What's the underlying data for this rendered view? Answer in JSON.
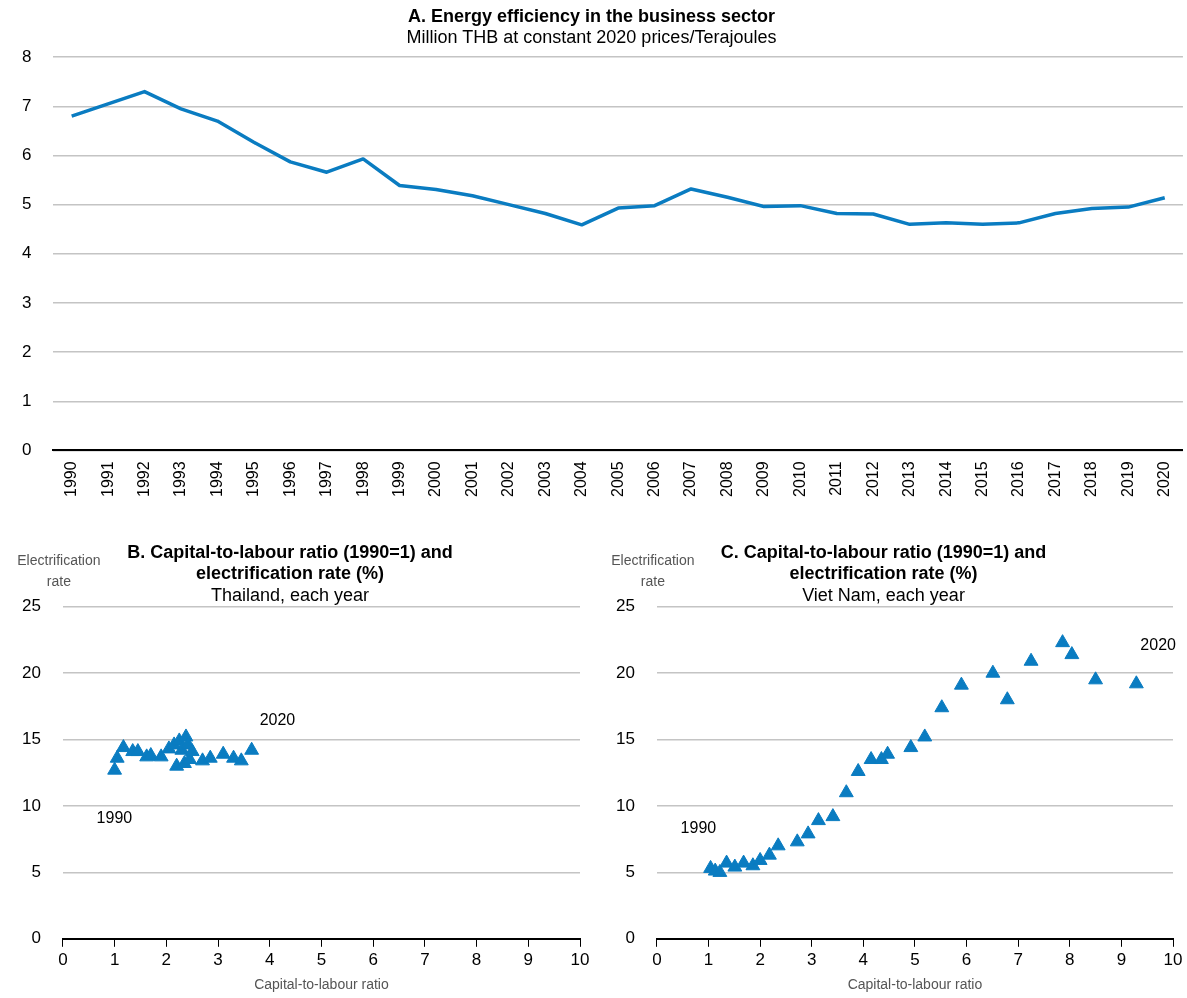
{
  "chart_data": [
    {
      "type": "line",
      "title": "A. Energy efficiency in the business sector",
      "subtitle": "Million THB at constant 2020 prices/Terajoules",
      "categories": [
        "1990",
        "1991",
        "1992",
        "1993",
        "1994",
        "1995",
        "1996",
        "1997",
        "1998",
        "1999",
        "2000",
        "2001",
        "2002",
        "2003",
        "2004",
        "2005",
        "2006",
        "2007",
        "2008",
        "2009",
        "2010",
        "2011",
        "2012",
        "2013",
        "2014",
        "2015",
        "2016",
        "2017",
        "2018",
        "2019",
        "2020"
      ],
      "series": [
        {
          "color": "#0a7cc1",
          "values": [
            6.8,
            7.05,
            7.3,
            6.95,
            6.7,
            6.27,
            5.87,
            5.66,
            5.93,
            5.39,
            5.31,
            5.18,
            5.0,
            4.82,
            4.59,
            4.93,
            4.98,
            5.32,
            5.15,
            4.96,
            4.98,
            4.82,
            4.81,
            4.6,
            4.63,
            4.6,
            4.63,
            4.82,
            4.92,
            4.95,
            5.14
          ]
        }
      ],
      "ylim": [
        0,
        8
      ],
      "yticks": [
        0,
        1,
        2,
        3,
        4,
        5,
        6,
        7,
        8
      ],
      "grid": "y",
      "marker": "none"
    },
    {
      "type": "scatter",
      "title": "B. Capital-to-labour ratio (1990=1) and electrification rate (%)",
      "subtitle": "Thailand, each year",
      "xlabel": "Capital-to-labour ratio",
      "ylabel": "Electrification rate",
      "series": [
        {
          "color": "#0a7cc1",
          "x": [
            1.0,
            1.05,
            1.17,
            1.35,
            1.45,
            1.62,
            1.7,
            1.9,
            2.05,
            2.15,
            2.2,
            2.25,
            2.3,
            2.35,
            2.38,
            2.42,
            2.45,
            2.5,
            2.7,
            2.85,
            3.1,
            3.3,
            3.45,
            3.65
          ],
          "values": [
            12.7,
            13.6,
            14.4,
            14.1,
            14.1,
            13.7,
            13.8,
            13.7,
            14.3,
            14.6,
            13.0,
            14.9,
            14.2,
            13.2,
            15.2,
            14.6,
            13.5,
            14.1,
            13.4,
            13.6,
            13.9,
            13.6,
            13.4,
            14.2
          ]
        }
      ],
      "xlim": [
        0,
        10
      ],
      "xticks": [
        0,
        1,
        2,
        3,
        4,
        5,
        6,
        7,
        8,
        9,
        10
      ],
      "ylim": [
        0,
        25
      ],
      "yticks": [
        0,
        5,
        10,
        15,
        20,
        25
      ],
      "grid": "y",
      "marker": "triangle",
      "annotations": [
        {
          "text": "1990",
          "x": 1.0,
          "y": 12.7
        },
        {
          "text": "2020",
          "x": 3.65,
          "y": 14.2
        }
      ]
    },
    {
      "type": "scatter",
      "title": "C. Capital-to-labour ratio (1990=1) and electrification rate (%)",
      "subtitle": "Viet Nam, each year",
      "xlabel": "Capital-to-labour ratio",
      "ylabel": "Electrification rate",
      "series": [
        {
          "color": "#0a7cc1",
          "x": [
            1.04,
            1.13,
            1.22,
            1.35,
            1.51,
            1.68,
            1.86,
            2.0,
            2.18,
            2.35,
            2.72,
            2.93,
            3.13,
            3.41,
            3.67,
            3.9,
            4.15,
            4.35,
            4.47,
            4.92,
            5.19,
            5.52,
            5.9,
            6.51,
            6.79,
            7.25,
            7.86,
            8.04,
            8.5,
            9.29
          ],
          "values": [
            5.3,
            5.1,
            5.0,
            5.7,
            5.4,
            5.7,
            5.5,
            5.9,
            6.3,
            7.0,
            7.3,
            7.9,
            8.9,
            9.2,
            11.0,
            12.6,
            13.5,
            13.5,
            13.9,
            14.4,
            15.2,
            17.4,
            19.1,
            20.0,
            18.0,
            20.9,
            22.3,
            21.4,
            19.5,
            19.2
          ]
        }
      ],
      "xlim": [
        0,
        10
      ],
      "xticks": [
        0,
        1,
        2,
        3,
        4,
        5,
        6,
        7,
        8,
        9,
        10
      ],
      "ylim": [
        0,
        25
      ],
      "yticks": [
        0,
        5,
        10,
        15,
        20,
        25
      ],
      "grid": "y",
      "marker": "triangle",
      "annotations": [
        {
          "text": "1990",
          "x": 1.04,
          "y": 5.3
        },
        {
          "text": "2020",
          "x": 9.29,
          "y": 19.2
        }
      ]
    }
  ]
}
